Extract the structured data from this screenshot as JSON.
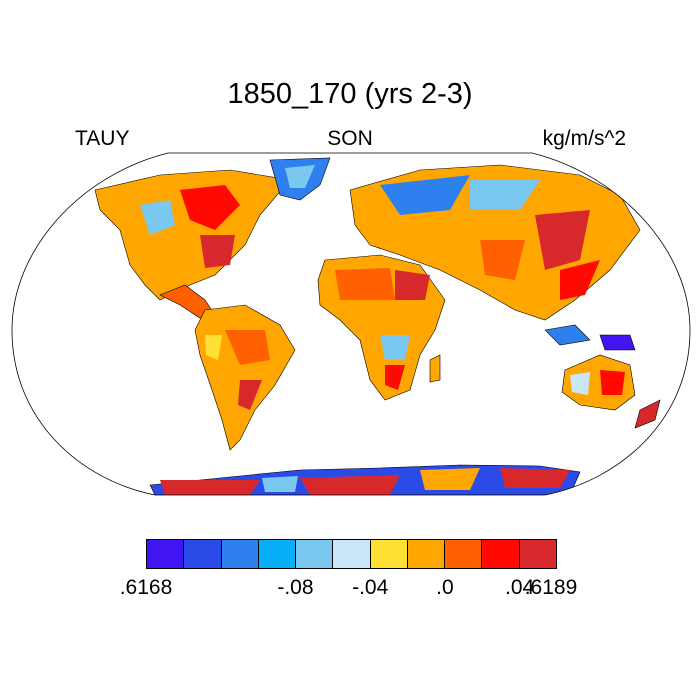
{
  "title": "1850_170 (yrs 2-3)",
  "left_label": "TAUY",
  "center_label": "SON",
  "right_label": "kg/m/s^2",
  "colorbar": {
    "colors": [
      "#4216f2",
      "#2b4be8",
      "#2f80ef",
      "#08aff8",
      "#7ac8f0",
      "#c9e7f8",
      "#ffe135",
      "#ffa700",
      "#ff6000",
      "#ff0a00",
      "#d7282c"
    ],
    "labels": [
      {
        "text": ".6168",
        "edge": 0
      },
      {
        "text": "-.08",
        "edge": 1
      },
      {
        "text": "-.04",
        "edge": 2
      },
      {
        "text": ".0",
        "edge": 3
      },
      {
        "text": ".04",
        "edge": 4
      },
      {
        "text": ".6189",
        "edge": 5
      }
    ]
  }
}
